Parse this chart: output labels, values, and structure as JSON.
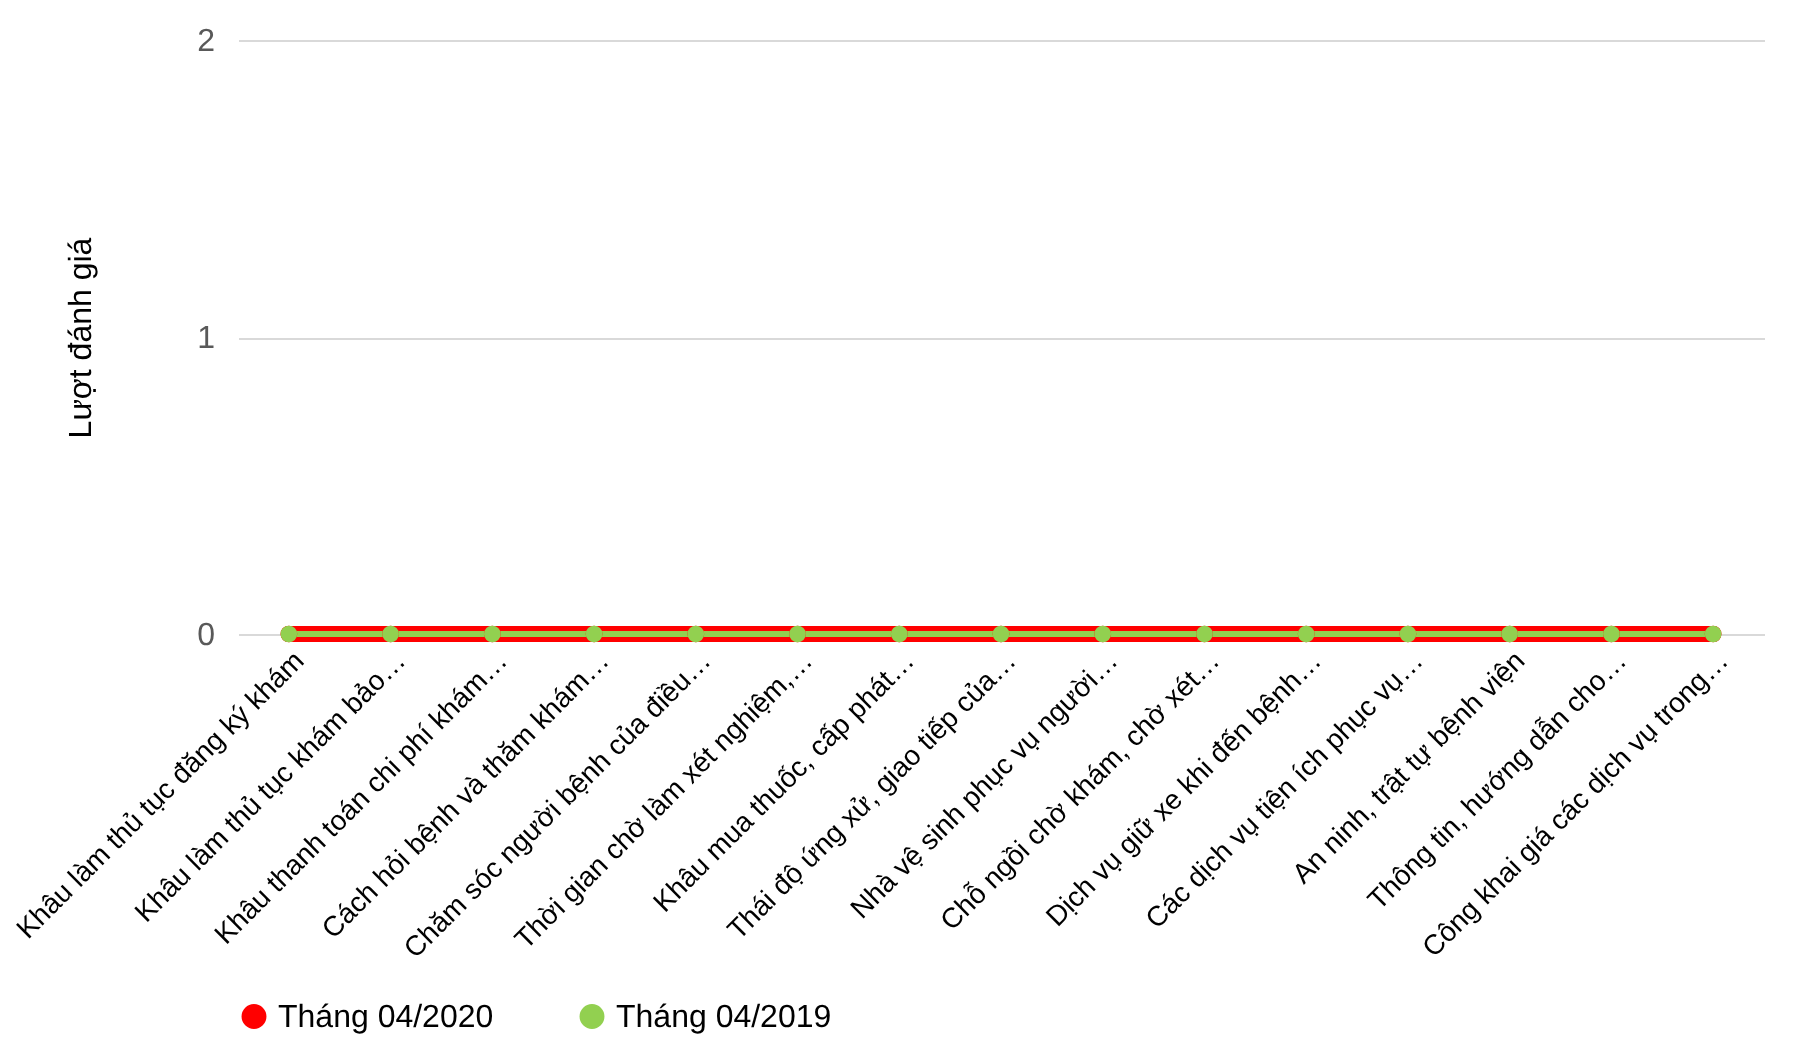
{
  "chart_data": {
    "type": "line",
    "ylabel": "Lượt đánh giá",
    "categories": [
      "Khâu làm thủ tục đăng ký khám",
      "Khâu làm thủ tục khám bảo…",
      "Khâu thanh toán chi phí khám…",
      "Cách hỏi bệnh và thăm khám…",
      "Chăm sóc người bệnh của điều…",
      "Thời gian chờ làm xét nghiệm,…",
      "Khâu mua thuốc, cấp phát…",
      "Thái độ ứng xử, giao tiếp của…",
      "Nhà vệ sinh phục vụ người…",
      "Chỗ ngồi chờ khám, chờ xét…",
      "Dịch vụ giữ xe khi đến bệnh…",
      "Các dịch vụ tiện ích phục vụ…",
      "An ninh, trật tự bệnh viện",
      "Thông tin, hướng dẫn cho…",
      "Công khai giá các dịch vụ trong…"
    ],
    "series": [
      {
        "name": "Tháng 04/2020",
        "color": "#ff0000",
        "values": [
          0,
          0,
          0,
          0,
          0,
          0,
          0,
          0,
          0,
          0,
          0,
          0,
          0,
          0,
          0
        ]
      },
      {
        "name": "Tháng 04/2019",
        "color": "#92d050",
        "values": [
          0,
          0,
          0,
          0,
          0,
          0,
          0,
          0,
          0,
          0,
          0,
          0,
          0,
          0,
          0
        ]
      }
    ],
    "ylim": [
      0,
      2
    ],
    "yticks": [
      0,
      1,
      2
    ],
    "grid": "y",
    "legend": "bottom",
    "marker": "circle",
    "line_style": "solid"
  }
}
